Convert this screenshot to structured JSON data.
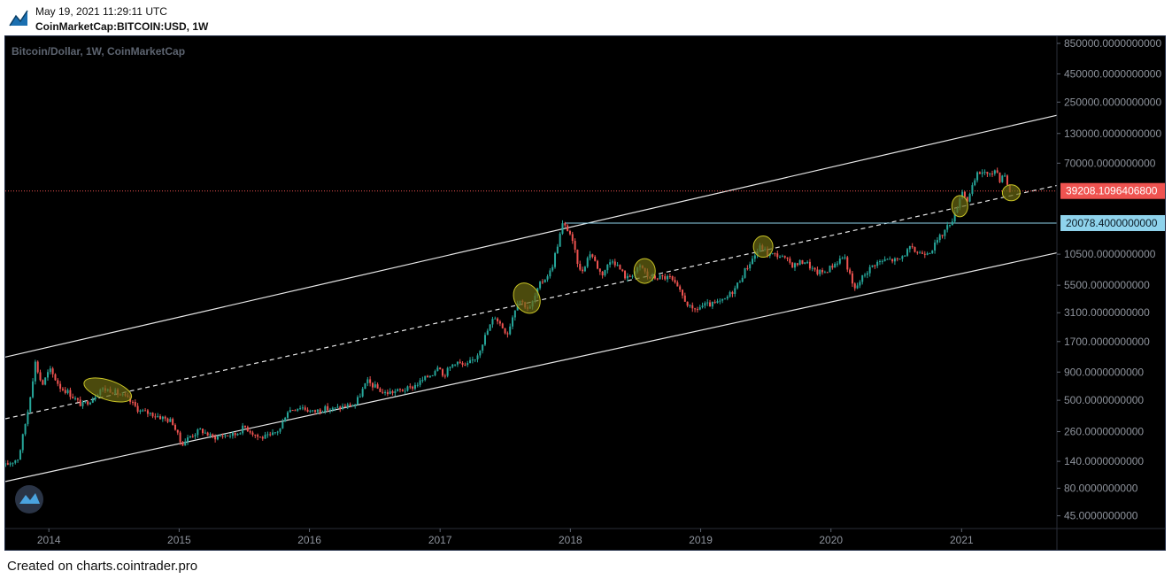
{
  "header": {
    "datetime": "May 19, 2021 11:29:11 UTC",
    "symbol": "CoinMarketCap:BITCOIN:USD, 1W",
    "logo_icon": "tradingview-logo-icon"
  },
  "footer": {
    "credit": "Created on charts.cointrader.pro"
  },
  "colors": {
    "background": "#000000",
    "up_candle": "#26a69a",
    "down_candle": "#ef5350",
    "channel_line": "#e8e8e8",
    "current_price": "#ef5350",
    "ath_level": "#8fd3ec",
    "highlight_fill": "#6b6a12",
    "highlight_stroke": "#c9c426",
    "axis_text": "#8e939c"
  },
  "chart_data": {
    "type": "candlestick",
    "title": "Bitcoin/Dollar, 1W, CoinMarketCap",
    "scale": "log",
    "y_range": [
      40,
      850000
    ],
    "x_range": [
      "2013-09-01",
      "2021-09-25"
    ],
    "y_ticks": [
      "850000.0000000000",
      "450000.0000000000",
      "250000.0000000000",
      "130000.0000000000",
      "70000.0000000000",
      "39208.1096406800",
      "20078.4000000000",
      "10500.0000000000",
      "5500.0000000000",
      "3100.0000000000",
      "1700.0000000000",
      "900.0000000000",
      "500.0000000000",
      "260.0000000000",
      "140.0000000000",
      "80.0000000000",
      "45.0000000000"
    ],
    "y_tick_values": [
      850000,
      450000,
      250000,
      130000,
      70000,
      39208.11,
      20078.4,
      10500,
      5500,
      3100,
      1700,
      900,
      500,
      260,
      140,
      80,
      45
    ],
    "x_ticks": [
      "2014",
      "2015",
      "2016",
      "2017",
      "2018",
      "2019",
      "2020",
      "2021"
    ],
    "x_tick_dates": [
      "2014-01-01",
      "2015-01-01",
      "2016-01-01",
      "2017-01-01",
      "2018-01-01",
      "2019-01-01",
      "2020-01-01",
      "2021-01-01"
    ],
    "current_price": {
      "label": "39208.1096406800",
      "value": 39208.11
    },
    "ath_level": {
      "label": "20078.4000000000",
      "value": 20078.4,
      "start": "2017-12-17"
    },
    "channel_lines": [
      {
        "name": "upper",
        "style": "solid",
        "start": [
          "2013-09-01",
          1230
        ],
        "end": [
          "2021-09-25",
          190000
        ]
      },
      {
        "name": "middle",
        "style": "dashed",
        "start": [
          "2013-09-01",
          340
        ],
        "end": [
          "2021-09-25",
          44000
        ]
      },
      {
        "name": "lower",
        "style": "solid",
        "start": [
          "2013-09-01",
          92
        ],
        "end": [
          "2021-09-25",
          10800
        ]
      }
    ],
    "highlights": [
      {
        "center": [
          "2014-06-15",
          620
        ],
        "rx": 28,
        "ry": 11,
        "rotate": 18
      },
      {
        "center": [
          "2017-09-01",
          4200
        ],
        "rx": 14,
        "ry": 18,
        "rotate": -30
      },
      {
        "center": [
          "2018-07-28",
          7400
        ],
        "rx": 12,
        "ry": 14,
        "rotate": 0
      },
      {
        "center": [
          "2019-06-25",
          12300
        ],
        "rx": 11,
        "ry": 12,
        "rotate": 0
      },
      {
        "center": [
          "2020-12-27",
          28600
        ],
        "rx": 9,
        "ry": 12,
        "rotate": 0
      },
      {
        "center": [
          "2021-05-20",
          37800
        ],
        "rx": 10,
        "ry": 9,
        "rotate": 0
      }
    ],
    "price_path": [
      [
        "2013-09-01",
        125
      ],
      [
        "2013-10-15",
        150
      ],
      [
        "2013-11-10",
        400
      ],
      [
        "2013-12-01",
        1100
      ],
      [
        "2013-12-20",
        680
      ],
      [
        "2014-01-10",
        950
      ],
      [
        "2014-02-10",
        650
      ],
      [
        "2014-03-01",
        600
      ],
      [
        "2014-04-10",
        450
      ],
      [
        "2014-05-10",
        520
      ],
      [
        "2014-06-01",
        630
      ],
      [
        "2014-07-01",
        620
      ],
      [
        "2014-08-15",
        520
      ],
      [
        "2014-09-20",
        400
      ],
      [
        "2014-10-20",
        380
      ],
      [
        "2014-11-20",
        350
      ],
      [
        "2014-12-20",
        320
      ],
      [
        "2015-01-14",
        200
      ],
      [
        "2015-02-10",
        240
      ],
      [
        "2015-03-10",
        270
      ],
      [
        "2015-04-10",
        230
      ],
      [
        "2015-05-10",
        240
      ],
      [
        "2015-06-15",
        245
      ],
      [
        "2015-07-10",
        290
      ],
      [
        "2015-08-20",
        230
      ],
      [
        "2015-09-20",
        235
      ],
      [
        "2015-10-20",
        280
      ],
      [
        "2015-11-05",
        400
      ],
      [
        "2015-12-15",
        440
      ],
      [
        "2016-01-15",
        390
      ],
      [
        "2016-02-15",
        420
      ],
      [
        "2016-03-15",
        415
      ],
      [
        "2016-04-15",
        440
      ],
      [
        "2016-05-15",
        460
      ],
      [
        "2016-06-17",
        740
      ],
      [
        "2016-07-10",
        660
      ],
      [
        "2016-08-05",
        580
      ],
      [
        "2016-09-15",
        610
      ],
      [
        "2016-10-15",
        640
      ],
      [
        "2016-11-15",
        740
      ],
      [
        "2016-12-20",
        890
      ],
      [
        "2017-01-05",
        1100
      ],
      [
        "2017-01-15",
        830
      ],
      [
        "2017-02-20",
        1130
      ],
      [
        "2017-03-20",
        1000
      ],
      [
        "2017-04-20",
        1250
      ],
      [
        "2017-05-20",
        2100
      ],
      [
        "2017-06-10",
        2900
      ],
      [
        "2017-07-15",
        2000
      ],
      [
        "2017-08-15",
        4200
      ],
      [
        "2017-09-15",
        3300
      ],
      [
        "2017-10-15",
        5600
      ],
      [
        "2017-11-15",
        7500
      ],
      [
        "2017-12-17",
        19500
      ],
      [
        "2018-01-05",
        17000
      ],
      [
        "2018-02-06",
        7000
      ],
      [
        "2018-03-05",
        11000
      ],
      [
        "2018-04-05",
        6800
      ],
      [
        "2018-05-05",
        9600
      ],
      [
        "2018-06-15",
        6300
      ],
      [
        "2018-07-25",
        8200
      ],
      [
        "2018-08-15",
        6400
      ],
      [
        "2018-09-15",
        6500
      ],
      [
        "2018-10-15",
        6400
      ],
      [
        "2018-11-20",
        4300
      ],
      [
        "2018-12-15",
        3200
      ],
      [
        "2019-01-15",
        3600
      ],
      [
        "2019-02-15",
        3700
      ],
      [
        "2019-03-15",
        4000
      ],
      [
        "2019-04-15",
        5200
      ],
      [
        "2019-05-15",
        7800
      ],
      [
        "2019-06-26",
        12500
      ],
      [
        "2019-07-15",
        10500
      ],
      [
        "2019-08-15",
        10300
      ],
      [
        "2019-09-25",
        8300
      ],
      [
        "2019-10-26",
        9200
      ],
      [
        "2019-11-25",
        7200
      ],
      [
        "2019-12-20",
        7200
      ],
      [
        "2020-01-20",
        8700
      ],
      [
        "2020-02-14",
        10200
      ],
      [
        "2020-03-13",
        4900
      ],
      [
        "2020-04-10",
        6900
      ],
      [
        "2020-05-10",
        8700
      ],
      [
        "2020-06-15",
        9400
      ],
      [
        "2020-07-15",
        9200
      ],
      [
        "2020-08-15",
        11800
      ],
      [
        "2020-09-15",
        10700
      ],
      [
        "2020-10-15",
        11500
      ],
      [
        "2020-11-15",
        16000
      ],
      [
        "2020-12-01",
        19000
      ],
      [
        "2020-12-20",
        24000
      ],
      [
        "2021-01-08",
        40000
      ],
      [
        "2021-01-25",
        32000
      ],
      [
        "2021-02-20",
        55000
      ],
      [
        "2021-03-13",
        60000
      ],
      [
        "2021-03-25",
        52000
      ],
      [
        "2021-04-14",
        63000
      ],
      [
        "2021-04-25",
        50000
      ],
      [
        "2021-05-08",
        58000
      ],
      [
        "2021-05-19",
        39208
      ]
    ]
  }
}
